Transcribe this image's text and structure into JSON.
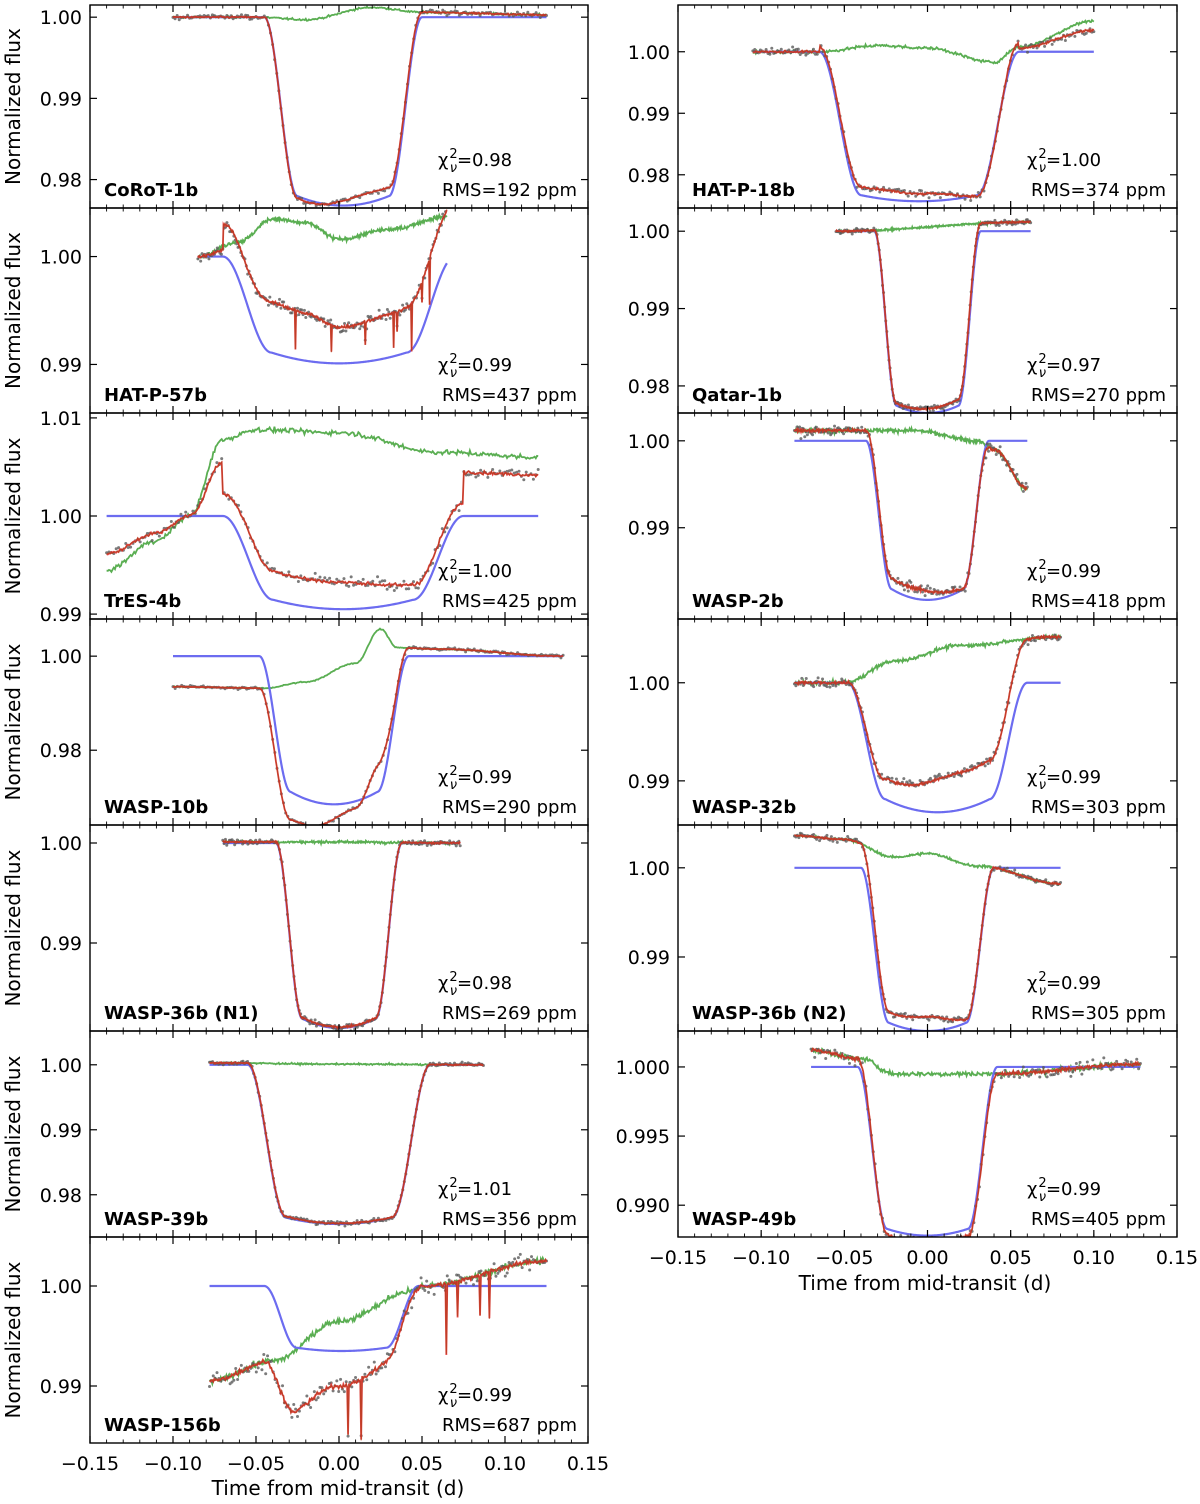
{
  "chart_data": {
    "type": "line",
    "figure_x_label": "Time from mid-transit (d)",
    "y_label": "Normalized flux",
    "x_ticks": [
      -0.15,
      -0.1,
      -0.05,
      0.0,
      0.05,
      0.1,
      0.15
    ],
    "x_tick_labels": [
      "−0.15",
      "−0.10",
      "−0.05",
      "0.00",
      "0.05",
      "0.10",
      "0.15"
    ],
    "xlim": [
      -0.15,
      0.15
    ],
    "series_colors": {
      "data": "#5a5a5a",
      "fit": "#e8393b",
      "systematics": "#5aae52",
      "transit": "#6c6cf0"
    },
    "panels": [
      {
        "column": "left",
        "name": "CoRoT-1b",
        "chi_prefix": "χ",
        "chi_value": "=0.98",
        "rms": "RMS=192 ppm",
        "ylim": [
          0.9765,
          1.0015
        ],
        "y_ticks": [
          1.0,
          0.99,
          0.98
        ],
        "y_tick_labels": [
          "1.00",
          "0.99",
          "0.98"
        ],
        "range": [
          -0.1,
          0.125
        ],
        "t0": -0.045,
        "t4": 0.05,
        "depth": 0.0232,
        "curv": 0.15,
        "off": [
          0,
          0,
          0
        ],
        "sys": [
          [
            -0.1,
            0
          ],
          [
            -0.05,
            0
          ],
          [
            -0.02,
            -0.0003
          ],
          [
            0.02,
            0.0012
          ],
          [
            0.05,
            0.0006
          ],
          [
            0.125,
            0.0003
          ]
        ],
        "noise": 0.0002,
        "spikes": 0
      },
      {
        "column": "left",
        "name": "HAT-P-57b",
        "chi_prefix": "χ",
        "chi_value": "=0.99",
        "rms": "RMS=437 ppm",
        "ylim": [
          0.9855,
          1.0045
        ],
        "y_ticks": [
          1.0,
          0.99
        ],
        "y_tick_labels": [
          "1.00",
          "0.99"
        ],
        "range": [
          -0.085,
          0.065
        ],
        "t0": -0.07,
        "t4": 0.07,
        "depth": 0.0099,
        "curv": 0.3,
        "off": [
          0,
          -0.002,
          0.0032
        ],
        "sys": [
          [
            -0.085,
            0
          ],
          [
            -0.06,
            0.0014
          ],
          [
            -0.04,
            0.0035
          ],
          [
            -0.02,
            0.0031
          ],
          [
            0.0,
            0.0016
          ],
          [
            0.03,
            0.0025
          ],
          [
            0.065,
            0.0037
          ]
        ],
        "noise": 0.0003,
        "spikes": 9
      },
      {
        "column": "left",
        "name": "TrES-4b",
        "chi_prefix": "χ",
        "chi_value": "=1.00",
        "rms": "RMS=425 ppm",
        "ylim": [
          0.9895,
          1.0105
        ],
        "y_ticks": [
          1.01,
          1.0,
          0.99
        ],
        "y_tick_labels": [
          "1.01",
          "1.00",
          "0.99"
        ],
        "range": [
          -0.14,
          0.12
        ],
        "t0": -0.07,
        "t4": 0.075,
        "depth": 0.0095,
        "curv": 0.3,
        "off": [
          0,
          0.004,
          0.0
        ],
        "sys": [
          [
            -0.14,
            -0.0055
          ],
          [
            -0.11,
            -0.0025
          ],
          [
            -0.09,
            0.0
          ],
          [
            -0.07,
            0.0078
          ],
          [
            -0.05,
            0.0088
          ],
          [
            0.0,
            0.0085
          ],
          [
            0.06,
            0.0065
          ],
          [
            0.12,
            0.006
          ]
        ],
        "noise": 0.0004,
        "spikes": 0
      },
      {
        "column": "left",
        "name": "WASP-10b",
        "chi_prefix": "χ",
        "chi_value": "=0.99",
        "rms": "RMS=290 ppm",
        "ylim": [
          0.9641,
          1.0079
        ],
        "y_ticks": [
          1.0,
          0.98
        ],
        "y_tick_labels": [
          "1.00",
          "0.98"
        ],
        "range": [
          -0.1,
          0.135
        ],
        "t0": -0.048,
        "t4": 0.042,
        "depth": 0.0315,
        "curv": 0.25,
        "off": [
          0,
          0,
          0
        ],
        "sys": [
          [
            -0.1,
            -0.0065
          ],
          [
            -0.045,
            -0.0068
          ],
          [
            -0.02,
            -0.0055
          ],
          [
            0.01,
            -0.0015
          ],
          [
            0.025,
            0.0058
          ],
          [
            0.035,
            0.0018
          ],
          [
            0.06,
            0.0015
          ],
          [
            0.135,
            0
          ]
        ],
        "noise": 0.0002,
        "spikes": 0
      },
      {
        "column": "left",
        "name": "WASP-36b (N1)",
        "chi_prefix": "χ",
        "chi_value": "=0.98",
        "rms": "RMS=269 ppm",
        "ylim": [
          0.9812,
          1.0018
        ],
        "y_ticks": [
          1.0,
          0.99
        ],
        "y_tick_labels": [
          "1.00",
          "0.99"
        ],
        "range": [
          -0.07,
          0.073
        ],
        "t0": -0.038,
        "t4": 0.038,
        "depth": 0.0185,
        "curv": 0.15,
        "off": [
          0,
          0,
          0
        ],
        "sys": [
          [
            -0.07,
            0.0001
          ],
          [
            0,
            0.0001
          ],
          [
            0.073,
            0
          ]
        ],
        "noise": 0.0002,
        "spikes": 0
      },
      {
        "column": "left",
        "name": "WASP-39b",
        "chi_prefix": "χ",
        "chi_value": "=1.01",
        "rms": "RMS=356 ppm",
        "ylim": [
          0.9735,
          1.0052
        ],
        "y_ticks": [
          1.0,
          0.99,
          0.98
        ],
        "y_tick_labels": [
          "1.00",
          "0.99",
          "0.98"
        ],
        "range": [
          -0.078,
          0.087
        ],
        "t0": -0.055,
        "t4": 0.055,
        "depth": 0.0245,
        "curv": 0.12,
        "off": [
          0,
          0,
          0
        ],
        "sys": [
          [
            -0.078,
            0.0003
          ],
          [
            0,
            0.0001
          ],
          [
            0.087,
            0
          ]
        ],
        "noise": 0.0002,
        "spikes": 0
      },
      {
        "column": "left",
        "name": "WASP-156b",
        "chi_prefix": "χ",
        "chi_value": "=0.99",
        "rms": "RMS=687 ppm",
        "ylim": [
          0.9843,
          1.0049
        ],
        "y_ticks": [
          1.0,
          0.99
        ],
        "y_tick_labels": [
          "1.00",
          "0.99"
        ],
        "range": [
          -0.078,
          0.125
        ],
        "t0": -0.045,
        "t4": 0.048,
        "depth": 0.0065,
        "curv": 0.15,
        "off": [
          0,
          0,
          0
        ],
        "sys": [
          [
            -0.078,
            -0.0095
          ],
          [
            -0.04,
            -0.0075
          ],
          [
            0.0,
            -0.0035
          ],
          [
            0.045,
            -0.0005
          ],
          [
            0.05,
            0
          ],
          [
            0.125,
            0.0025
          ]
        ],
        "noise": 0.0005,
        "spikes": 6
      },
      {
        "column": "right",
        "name": "HAT-P-18b",
        "chi_prefix": "χ",
        "chi_value": "=1.00",
        "rms": "RMS=374 ppm",
        "ylim": [
          0.9746,
          1.0076
        ],
        "y_ticks": [
          1.0,
          0.99,
          0.98
        ],
        "y_tick_labels": [
          "1.00",
          "0.99",
          "0.98"
        ],
        "range": [
          -0.105,
          0.1
        ],
        "t0": -0.065,
        "t4": 0.055,
        "depth": 0.0243,
        "curv": 0.12,
        "off": [
          0,
          -0.001,
          0
        ],
        "sys": [
          [
            -0.105,
            0.0
          ],
          [
            -0.065,
            0.0
          ],
          [
            -0.03,
            0.001
          ],
          [
            0.0,
            0.0006
          ],
          [
            0.04,
            -0.0017
          ],
          [
            0.055,
            0.0008
          ],
          [
            0.1,
            0.005
          ]
        ],
        "noise": 0.0004,
        "spikes": 0
      },
      {
        "column": "right",
        "name": "Qatar-1b",
        "chi_prefix": "χ",
        "chi_value": "=0.97",
        "rms": "RMS=270 ppm",
        "ylim": [
          0.9765,
          1.003
        ],
        "y_ticks": [
          1.0,
          0.99,
          0.98
        ],
        "y_tick_labels": [
          "1.00",
          "0.99",
          "0.98"
        ],
        "range": [
          -0.055,
          0.062
        ],
        "t0": -0.032,
        "t4": 0.032,
        "depth": 0.0235,
        "curv": 0.12,
        "off": [
          0,
          0,
          0
        ],
        "sys": [
          [
            -0.055,
            0
          ],
          [
            0.062,
            0.0012
          ]
        ],
        "noise": 0.0002,
        "spikes": 0
      },
      {
        "column": "right",
        "name": "WASP-2b",
        "chi_prefix": "χ",
        "chi_value": "=0.99",
        "rms": "RMS=418 ppm",
        "ylim": [
          0.9795,
          1.0032
        ],
        "y_ticks": [
          1.0,
          0.99
        ],
        "y_tick_labels": [
          "1.00",
          "0.99"
        ],
        "range": [
          -0.08,
          0.06
        ],
        "t0": -0.037,
        "t4": 0.037,
        "depth": 0.0183,
        "curv": 0.2,
        "off": [
          0,
          0,
          0
        ],
        "sys": [
          [
            -0.08,
            0.0012
          ],
          [
            -0.01,
            0.0012
          ],
          [
            0.03,
            0.0
          ],
          [
            0.04,
            -0.001
          ],
          [
            0.06,
            -0.0055
          ]
        ],
        "noise": 0.0004,
        "spikes": 0
      },
      {
        "column": "right",
        "name": "WASP-32b",
        "chi_prefix": "χ",
        "chi_value": "=0.99",
        "rms": "RMS=303 ppm",
        "ylim": [
          0.9855,
          1.0065
        ],
        "y_ticks": [
          1.0,
          0.99
        ],
        "y_tick_labels": [
          "1.00",
          "0.99"
        ],
        "range": [
          -0.08,
          0.08
        ],
        "t0": -0.048,
        "t4": 0.06,
        "depth": 0.0132,
        "curv": 0.3,
        "off": [
          0,
          0,
          0
        ],
        "sys": [
          [
            -0.08,
            0.0
          ],
          [
            -0.05,
            0.0
          ],
          [
            -0.02,
            0.0022
          ],
          [
            0.02,
            0.0038
          ],
          [
            0.08,
            0.0047
          ]
        ],
        "noise": 0.0003,
        "spikes": 0
      },
      {
        "column": "right",
        "name": "WASP-36b (N2)",
        "chi_prefix": "χ",
        "chi_value": "=0.99",
        "rms": "RMS=305 ppm",
        "ylim": [
          0.9817,
          1.0048
        ],
        "y_ticks": [
          1.0,
          0.99
        ],
        "y_tick_labels": [
          "1.00",
          "0.99"
        ],
        "range": [
          -0.08,
          0.08
        ],
        "t0": -0.04,
        "t4": 0.04,
        "depth": 0.0183,
        "curv": 0.15,
        "off": [
          0,
          0,
          0
        ],
        "sys": [
          [
            -0.08,
            0.0036
          ],
          [
            -0.05,
            0.0032
          ],
          [
            -0.02,
            0.0012
          ],
          [
            0.0,
            0.0016
          ],
          [
            0.03,
            0.0002
          ],
          [
            0.08,
            -0.0018
          ]
        ],
        "noise": 0.0002,
        "spikes": 0
      },
      {
        "column": "right",
        "name": "WASP-49b",
        "chi_prefix": "χ",
        "chi_value": "=0.99",
        "rms": "RMS=405 ppm",
        "ylim": [
          0.9877,
          1.0026
        ],
        "y_ticks": [
          1.0,
          0.995,
          0.99
        ],
        "y_tick_labels": [
          "1.000",
          "0.995",
          "0.990"
        ],
        "range": [
          -0.07,
          0.128
        ],
        "t0": -0.042,
        "t4": 0.042,
        "depth": 0.0122,
        "curv": 0.12,
        "off": [
          0,
          0,
          0
        ],
        "sys": [
          [
            -0.07,
            0.0012
          ],
          [
            -0.04,
            0.0006
          ],
          [
            -0.02,
            -0.0005
          ],
          [
            0.04,
            -0.0005
          ],
          [
            0.128,
            0.0002
          ]
        ],
        "noise": 0.0003,
        "spikes": 0
      }
    ]
  }
}
